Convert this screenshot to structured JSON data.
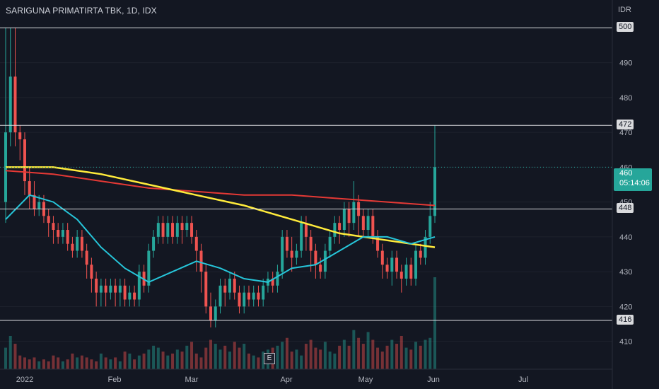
{
  "header": {
    "title": "SARIGUNA PRIMATIRTA TBK, 1D, IDX",
    "currency": "IDR"
  },
  "last_price": {
    "value": "460",
    "countdown": "05:14:06"
  },
  "marker_label": "E",
  "colors": {
    "bg": "#131722",
    "up": "#26a69a",
    "down": "#ef5350",
    "ma_fast": "#26c6da",
    "ma_mid": "#ffeb3b",
    "ma_slow": "#e53935",
    "hline": "#d9dadd"
  },
  "chart_data": {
    "type": "candlestick",
    "y_axis": {
      "ticks": [
        410,
        420,
        430,
        440,
        450,
        460,
        470,
        480,
        490,
        500
      ],
      "range": [
        402,
        508
      ]
    },
    "x_axis": {
      "labels": [
        "2022",
        "Feb",
        "Mar",
        "Apr",
        "May",
        "Jun",
        "Jul"
      ]
    },
    "horizontal_levels": [
      500,
      472,
      448,
      416
    ],
    "candles": [
      [
        450,
        470,
        444,
        500
      ],
      [
        470,
        486,
        466,
        500
      ],
      [
        486,
        470,
        466,
        500
      ],
      [
        470,
        468,
        462,
        472
      ],
      [
        468,
        456,
        452,
        470
      ],
      [
        456,
        452,
        448,
        460
      ],
      [
        452,
        448,
        446,
        456
      ],
      [
        448,
        450,
        446,
        452
      ],
      [
        450,
        446,
        444,
        452
      ],
      [
        446,
        444,
        440,
        448
      ],
      [
        444,
        442,
        438,
        446
      ],
      [
        442,
        440,
        438,
        444
      ],
      [
        440,
        442,
        438,
        444
      ],
      [
        442,
        438,
        436,
        444
      ],
      [
        438,
        436,
        434,
        440
      ],
      [
        436,
        440,
        434,
        442
      ],
      [
        440,
        436,
        434,
        442
      ],
      [
        436,
        432,
        428,
        438
      ],
      [
        432,
        428,
        424,
        434
      ],
      [
        428,
        424,
        420,
        430
      ],
      [
        424,
        426,
        420,
        428
      ],
      [
        426,
        424,
        420,
        428
      ],
      [
        424,
        426,
        422,
        428
      ],
      [
        426,
        424,
        420,
        428
      ],
      [
        424,
        426,
        420,
        428
      ],
      [
        426,
        422,
        420,
        428
      ],
      [
        422,
        424,
        420,
        426
      ],
      [
        424,
        422,
        420,
        426
      ],
      [
        422,
        430,
        420,
        432
      ],
      [
        430,
        426,
        424,
        432
      ],
      [
        426,
        436,
        424,
        438
      ],
      [
        436,
        440,
        434,
        442
      ],
      [
        440,
        444,
        438,
        446
      ],
      [
        444,
        440,
        438,
        446
      ],
      [
        440,
        444,
        438,
        446
      ],
      [
        444,
        440,
        438,
        446
      ],
      [
        440,
        444,
        438,
        446
      ],
      [
        444,
        442,
        438,
        446
      ],
      [
        442,
        444,
        440,
        446
      ],
      [
        444,
        440,
        438,
        446
      ],
      [
        440,
        436,
        430,
        442
      ],
      [
        436,
        430,
        424,
        438
      ],
      [
        430,
        420,
        418,
        432
      ],
      [
        420,
        416,
        414,
        424
      ],
      [
        416,
        420,
        414,
        422
      ],
      [
        420,
        426,
        418,
        428
      ],
      [
        426,
        424,
        420,
        428
      ],
      [
        424,
        428,
        422,
        430
      ],
      [
        428,
        424,
        422,
        430
      ],
      [
        424,
        420,
        418,
        426
      ],
      [
        420,
        424,
        418,
        426
      ],
      [
        424,
        422,
        420,
        426
      ],
      [
        422,
        424,
        420,
        426
      ],
      [
        424,
        422,
        420,
        426
      ],
      [
        422,
        426,
        420,
        428
      ],
      [
        426,
        428,
        424,
        430
      ],
      [
        428,
        426,
        424,
        430
      ],
      [
        426,
        430,
        424,
        432
      ],
      [
        430,
        440,
        428,
        442
      ],
      [
        440,
        436,
        434,
        442
      ],
      [
        436,
        434,
        430,
        440
      ],
      [
        434,
        436,
        432,
        438
      ],
      [
        436,
        444,
        434,
        446
      ],
      [
        444,
        440,
        436,
        446
      ],
      [
        440,
        436,
        430,
        442
      ],
      [
        436,
        432,
        428,
        438
      ],
      [
        432,
        430,
        428,
        434
      ],
      [
        430,
        436,
        428,
        438
      ],
      [
        436,
        440,
        434,
        442
      ],
      [
        440,
        444,
        438,
        446
      ],
      [
        444,
        442,
        438,
        446
      ],
      [
        442,
        448,
        440,
        450
      ],
      [
        448,
        444,
        440,
        450
      ],
      [
        444,
        450,
        442,
        456
      ],
      [
        450,
        446,
        440,
        452
      ],
      [
        446,
        442,
        440,
        448
      ],
      [
        442,
        446,
        440,
        448
      ],
      [
        446,
        440,
        438,
        448
      ],
      [
        440,
        436,
        434,
        442
      ],
      [
        436,
        432,
        428,
        438
      ],
      [
        432,
        430,
        428,
        434
      ],
      [
        430,
        434,
        426,
        436
      ],
      [
        434,
        430,
        428,
        436
      ],
      [
        430,
        428,
        424,
        432
      ],
      [
        428,
        432,
        426,
        434
      ],
      [
        432,
        428,
        426,
        434
      ],
      [
        428,
        436,
        426,
        438
      ],
      [
        436,
        434,
        432,
        438
      ],
      [
        434,
        440,
        432,
        442
      ],
      [
        440,
        446,
        438,
        450
      ],
      [
        446,
        460,
        444,
        472
      ]
    ],
    "volume": [
      22,
      34,
      26,
      14,
      12,
      10,
      12,
      8,
      10,
      8,
      14,
      12,
      8,
      10,
      16,
      12,
      14,
      12,
      10,
      8,
      16,
      12,
      10,
      12,
      8,
      18,
      16,
      10,
      14,
      16,
      20,
      24,
      22,
      18,
      14,
      16,
      20,
      18,
      24,
      28,
      16,
      12,
      22,
      30,
      26,
      20,
      24,
      18,
      28,
      22,
      26,
      16,
      14,
      12,
      18,
      20,
      22,
      24,
      28,
      32,
      18,
      20,
      14,
      26,
      30,
      22,
      20,
      28,
      18,
      16,
      24,
      30,
      24,
      40,
      32,
      26,
      38,
      30,
      22,
      18,
      24,
      30,
      26,
      34,
      22,
      20,
      28,
      24,
      30,
      32,
      94
    ],
    "ma_fast": [
      [
        0,
        445
      ],
      [
        5,
        452
      ],
      [
        10,
        450
      ],
      [
        15,
        445
      ],
      [
        20,
        437
      ],
      [
        25,
        431
      ],
      [
        30,
        427
      ],
      [
        35,
        430
      ],
      [
        40,
        433
      ],
      [
        45,
        431
      ],
      [
        50,
        428
      ],
      [
        55,
        427
      ],
      [
        60,
        431
      ],
      [
        65,
        432
      ],
      [
        70,
        436
      ],
      [
        75,
        440
      ],
      [
        80,
        440
      ],
      [
        85,
        438
      ],
      [
        90,
        440
      ]
    ],
    "ma_mid": [
      [
        0,
        460
      ],
      [
        10,
        460
      ],
      [
        20,
        458
      ],
      [
        30,
        455
      ],
      [
        40,
        452
      ],
      [
        50,
        449
      ],
      [
        60,
        445
      ],
      [
        70,
        441
      ],
      [
        80,
        439
      ],
      [
        90,
        437
      ]
    ],
    "ma_slow": [
      [
        0,
        459
      ],
      [
        10,
        458
      ],
      [
        20,
        456
      ],
      [
        30,
        454
      ],
      [
        40,
        453
      ],
      [
        50,
        452
      ],
      [
        60,
        452
      ],
      [
        70,
        451
      ],
      [
        80,
        450
      ],
      [
        90,
        449
      ]
    ]
  }
}
